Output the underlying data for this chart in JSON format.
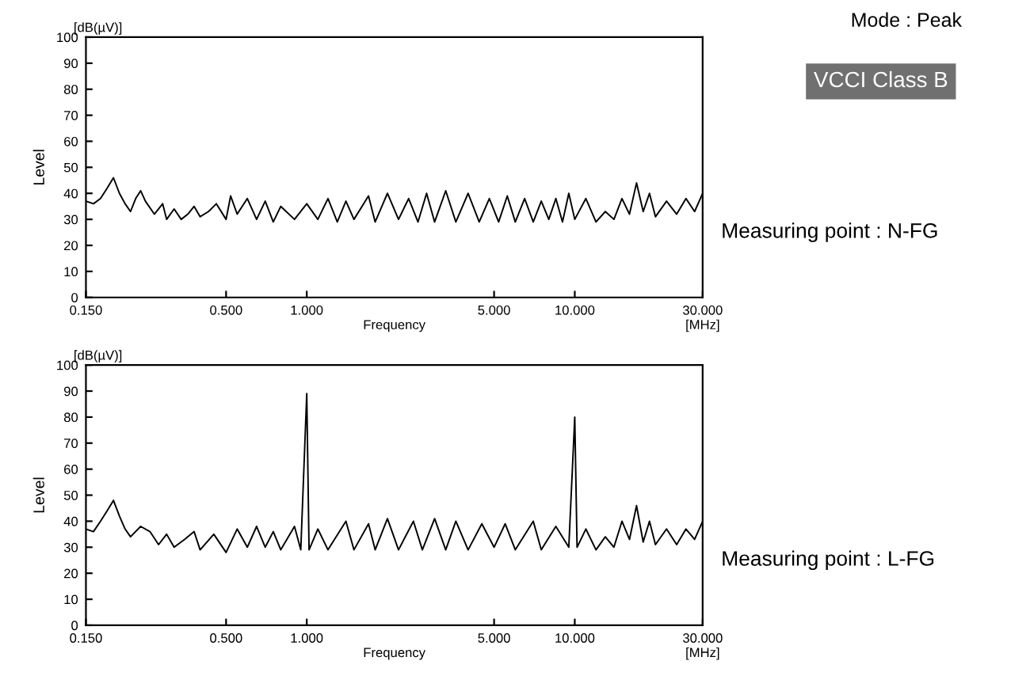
{
  "chart_data": [
    {
      "type": "line",
      "xlabel": "Frequency",
      "ylabel": "Level",
      "annotations": [
        "[dB(µV)]",
        "[MHz]",
        "Mode : Peak",
        "VCCI Class B",
        "Measuring point : N-FG"
      ],
      "log": "x",
      "xlim": [
        0.15,
        30
      ],
      "xticks": [
        {
          "value": 0.15,
          "label": "0.150"
        },
        {
          "value": 0.5,
          "label": "0.500"
        },
        {
          "value": 1,
          "label": "1.000"
        },
        {
          "value": 5,
          "label": "5.000"
        },
        {
          "value": 10,
          "label": "10.000"
        },
        {
          "value": 30,
          "label": "30.000"
        }
      ],
      "ylim": [
        0,
        100
      ],
      "yticks": [
        0,
        10,
        20,
        30,
        40,
        50,
        60,
        70,
        80,
        90,
        100
      ],
      "grid": false,
      "legend": false,
      "series": [
        {
          "color": "#000000",
          "x": [
            0.15,
            0.16,
            0.17,
            0.18,
            0.19,
            0.2,
            0.21,
            0.22,
            0.23,
            0.24,
            0.25,
            0.27,
            0.29,
            0.3,
            0.32,
            0.34,
            0.36,
            0.38,
            0.4,
            0.43,
            0.46,
            0.5,
            0.52,
            0.55,
            0.6,
            0.65,
            0.7,
            0.75,
            0.8,
            0.9,
            1.0,
            1.1,
            1.2,
            1.3,
            1.4,
            1.5,
            1.7,
            1.8,
            2.0,
            2.2,
            2.4,
            2.6,
            2.8,
            3.0,
            3.3,
            3.6,
            4.0,
            4.4,
            4.8,
            5.2,
            5.6,
            6.0,
            6.5,
            7.0,
            7.5,
            8,
            8.5,
            9,
            9.5,
            10,
            11,
            12,
            13,
            14,
            15,
            16,
            17,
            18,
            19,
            20,
            22,
            24,
            26,
            28,
            30
          ],
          "values": [
            37,
            36,
            38,
            42,
            46,
            40,
            36,
            33,
            38,
            41,
            37,
            32,
            36,
            30,
            34,
            30,
            32,
            35,
            31,
            33,
            36,
            30,
            39,
            32,
            38,
            30,
            37,
            29,
            35,
            30,
            36,
            30,
            38,
            29,
            37,
            30,
            39,
            29,
            40,
            30,
            38,
            29,
            40,
            29,
            41,
            29,
            40,
            29,
            38,
            29,
            39,
            29,
            38,
            29,
            37,
            30,
            38,
            29,
            40,
            30,
            38,
            29,
            33,
            30,
            38,
            32,
            44,
            33,
            40,
            31,
            37,
            32,
            38,
            33,
            40
          ]
        }
      ]
    },
    {
      "type": "line",
      "xlabel": "Frequency",
      "ylabel": "Level",
      "annotations": [
        "[dB(µV)]",
        "[MHz]",
        "Measuring point : L-FG"
      ],
      "log": "x",
      "xlim": [
        0.15,
        30
      ],
      "xticks": [
        {
          "value": 0.15,
          "label": "0.150"
        },
        {
          "value": 0.5,
          "label": "0.500"
        },
        {
          "value": 1,
          "label": "1.000"
        },
        {
          "value": 5,
          "label": "5.000"
        },
        {
          "value": 10,
          "label": "10.000"
        },
        {
          "value": 30,
          "label": "30.000"
        }
      ],
      "ylim": [
        0,
        100
      ],
      "yticks": [
        0,
        10,
        20,
        30,
        40,
        50,
        60,
        70,
        80,
        90,
        100
      ],
      "grid": false,
      "legend": false,
      "series": [
        {
          "color": "#000000",
          "x": [
            0.15,
            0.16,
            0.17,
            0.18,
            0.19,
            0.2,
            0.21,
            0.22,
            0.24,
            0.26,
            0.28,
            0.3,
            0.32,
            0.35,
            0.38,
            0.4,
            0.45,
            0.5,
            0.55,
            0.6,
            0.65,
            0.7,
            0.75,
            0.8,
            0.9,
            0.95,
            1.0,
            1.02,
            1.1,
            1.2,
            1.4,
            1.5,
            1.7,
            1.8,
            2.0,
            2.2,
            2.5,
            2.7,
            3.0,
            3.3,
            3.6,
            4.0,
            4.5,
            5,
            5.5,
            6,
            7,
            7.5,
            8.5,
            9.5,
            10,
            10.2,
            11,
            12,
            13,
            14,
            15,
            16,
            17,
            18,
            19,
            20,
            22,
            24,
            26,
            28,
            30
          ],
          "values": [
            37,
            36,
            40,
            44,
            48,
            42,
            37,
            34,
            38,
            36,
            31,
            35,
            30,
            33,
            36,
            29,
            35,
            28,
            37,
            30,
            38,
            30,
            36,
            29,
            38,
            29,
            89,
            29,
            37,
            29,
            40,
            29,
            39,
            29,
            41,
            29,
            40,
            29,
            41,
            29,
            40,
            29,
            39,
            30,
            39,
            29,
            40,
            29,
            38,
            30,
            80,
            30,
            37,
            29,
            34,
            30,
            40,
            33,
            46,
            32,
            40,
            31,
            37,
            31,
            37,
            33,
            40
          ]
        }
      ]
    }
  ]
}
